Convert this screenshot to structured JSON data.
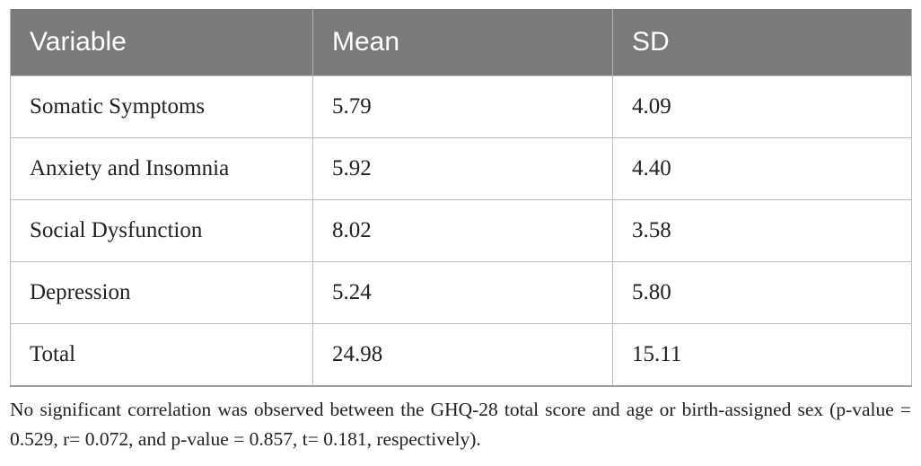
{
  "table": {
    "headers": [
      "Variable",
      "Mean",
      "SD"
    ],
    "rows": [
      [
        "Somatic Symptoms",
        "5.79",
        "4.09"
      ],
      [
        "Anxiety and Insomnia",
        "5.92",
        "4.40"
      ],
      [
        "Social Dysfunction",
        "8.02",
        "3.58"
      ],
      [
        "Depression",
        "5.24",
        "5.80"
      ],
      [
        "Total",
        "24.98",
        "15.11"
      ]
    ]
  },
  "footnote": "No significant correlation was observed between the GHQ-28 total score and age or birth-assigned sex (p-value = 0.529, r= 0.072, and p-value = 0.857, t= 0.181, respectively)."
}
